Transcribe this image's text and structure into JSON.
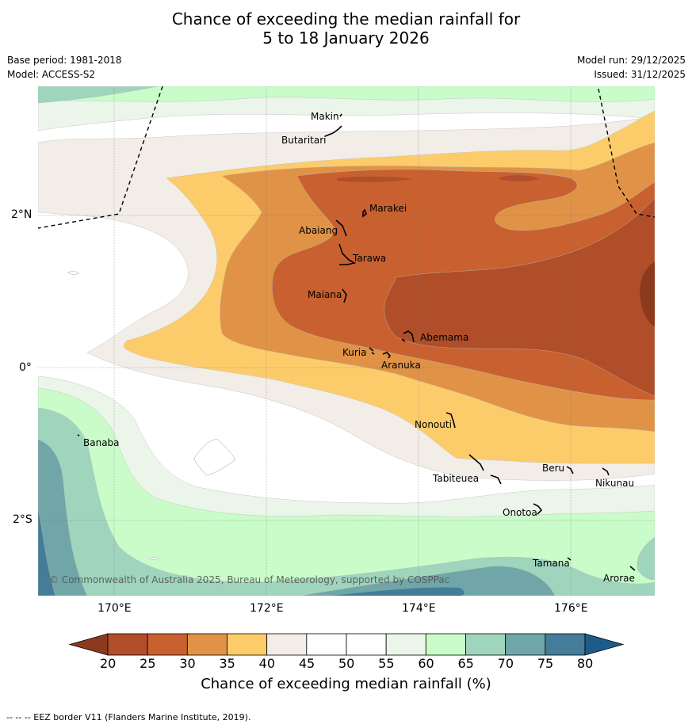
{
  "title_line1": "Chance of exceeding the median rainfall for",
  "title_line2": "5 to 18 January 2026",
  "base_period": "Base period: 1981-2018",
  "model": "Model: ACCESS-S2",
  "model_run": "Model run: 29/12/2025",
  "issued": "Issued: 31/12/2025",
  "copyright": "© Commonwealth of Australia 2025, Bureau of Meteorology, supported by COSPPac",
  "footer": "--  --  -- EEZ border V11 (Flanders Marine Institute, 2019).",
  "axes": {
    "lon_labels": [
      "170°E",
      "172°E",
      "174°E",
      "176°E"
    ],
    "lat_labels": [
      "2°N",
      "0°",
      "2°S"
    ]
  },
  "colorbar": {
    "title": "Chance of exceeding median rainfall (%)",
    "ticks": [
      "20",
      "25",
      "30",
      "35",
      "40",
      "45",
      "50",
      "55",
      "60",
      "65",
      "70",
      "75",
      "80"
    ],
    "colors": [
      "#b04e2a",
      "#c8612f",
      "#e09346",
      "#fdcc6a",
      "#f2ede7",
      "#ffffff",
      "#ffffff",
      "#ecf5ea",
      "#c9fcc9",
      "#9fd4bd",
      "#70a6a8",
      "#447c9a"
    ],
    "low_color": "#8b3a1e",
    "high_color": "#1d5c8a"
  },
  "places": [
    {
      "name": "Makin"
    },
    {
      "name": "Butaritari"
    },
    {
      "name": "Marakei"
    },
    {
      "name": "Abaiang"
    },
    {
      "name": "Tarawa"
    },
    {
      "name": "Maiana"
    },
    {
      "name": "Abemama"
    },
    {
      "name": "Kuria"
    },
    {
      "name": "Aranuka"
    },
    {
      "name": "Nonouti"
    },
    {
      "name": "Banaba"
    },
    {
      "name": "Tabiteuea"
    },
    {
      "name": "Beru"
    },
    {
      "name": "Nikunau"
    },
    {
      "name": "Onotoa"
    },
    {
      "name": "Tamana"
    },
    {
      "name": "Arorae"
    }
  ]
}
